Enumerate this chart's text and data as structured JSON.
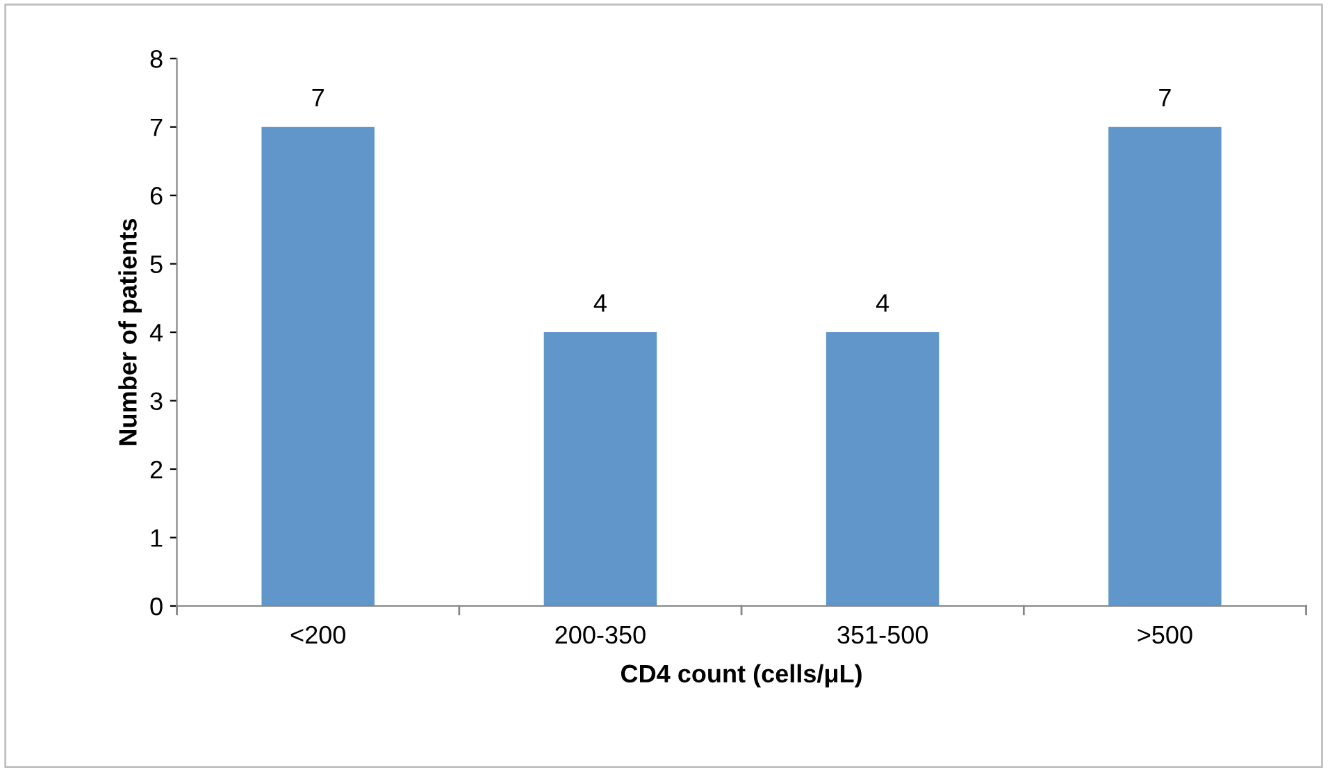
{
  "chart_data": {
    "type": "bar",
    "xlabel": "CD4 count (cells/μL)",
    "ylabel": "Number of patients",
    "categories": [
      "<200",
      "200-350",
      "351-500",
      ">500"
    ],
    "values": [
      7,
      4,
      4,
      7
    ],
    "color": "#6096c9",
    "ylim": [
      0,
      8
    ],
    "yticks": [
      0,
      1,
      2,
      3,
      4,
      5,
      6,
      7,
      8
    ],
    "data_labels": true,
    "grid": false,
    "legend": false
  }
}
